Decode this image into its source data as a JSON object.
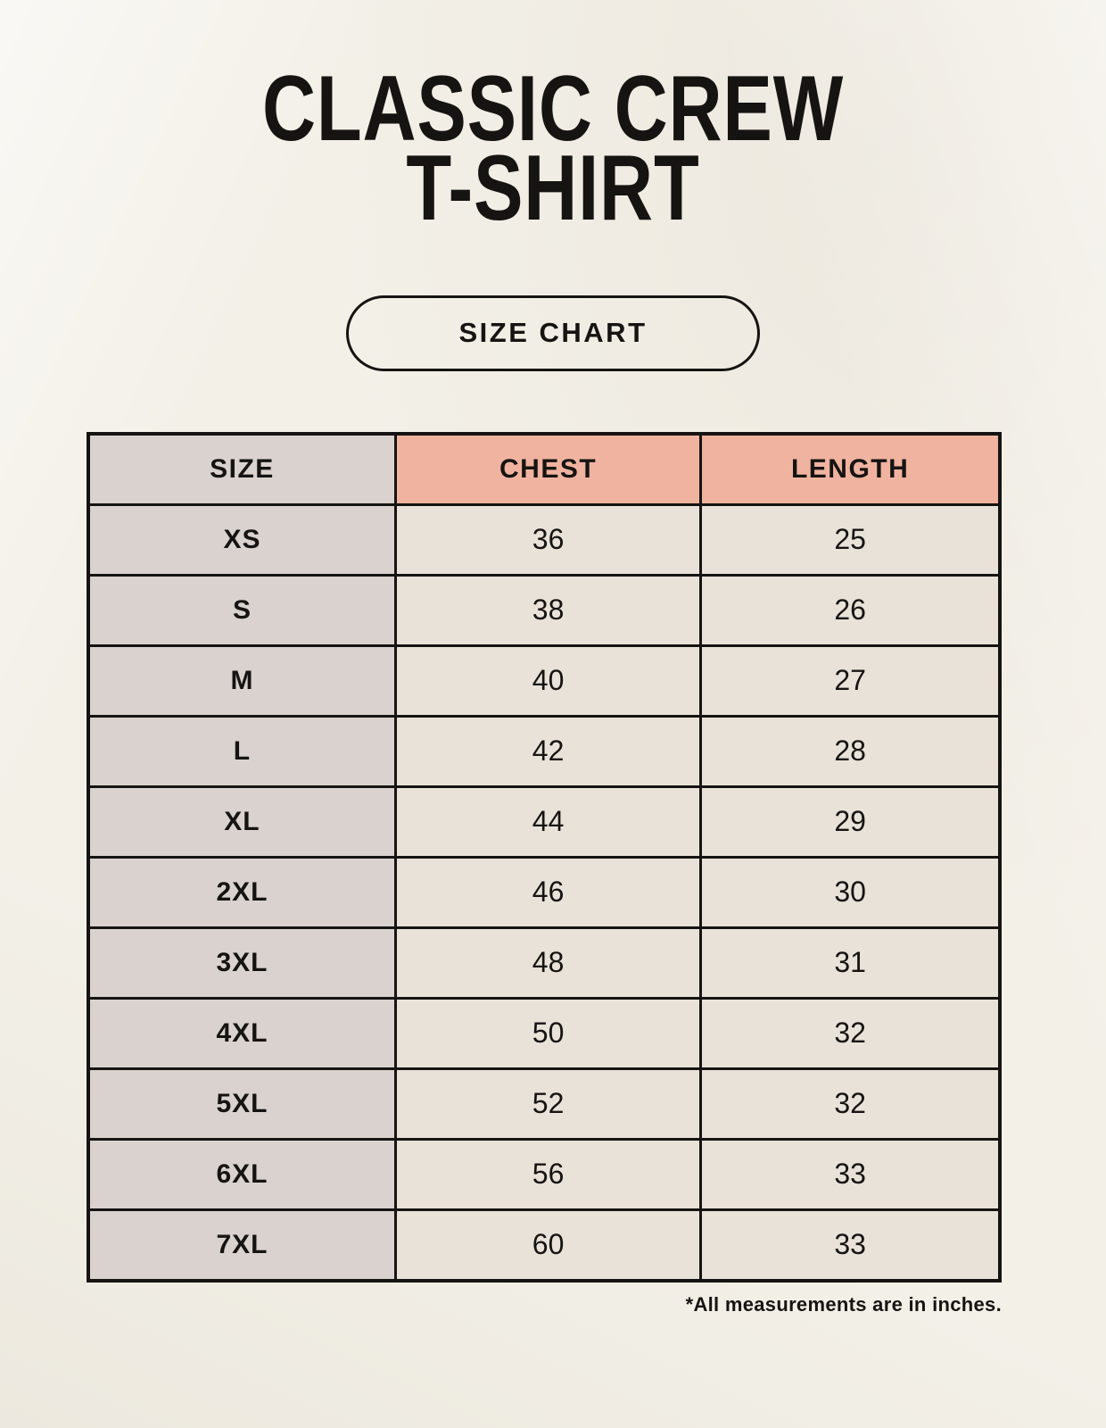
{
  "header": {
    "title_line1": "CLASSIC CREW",
    "title_line2": "T-SHIRT",
    "button_label": "SIZE CHART"
  },
  "chart_data": {
    "type": "table",
    "title": "Classic Crew T-Shirt Size Chart",
    "columns": [
      "SIZE",
      "CHEST",
      "LENGTH"
    ],
    "rows": [
      [
        "XS",
        "36",
        "25"
      ],
      [
        "S",
        "38",
        "26"
      ],
      [
        "M",
        "40",
        "27"
      ],
      [
        "L",
        "42",
        "28"
      ],
      [
        "XL",
        "44",
        "29"
      ],
      [
        "2XL",
        "46",
        "30"
      ],
      [
        "3XL",
        "48",
        "31"
      ],
      [
        "4XL",
        "50",
        "32"
      ],
      [
        "5XL",
        "52",
        "32"
      ],
      [
        "6XL",
        "56",
        "33"
      ],
      [
        "7XL",
        "60",
        "33"
      ]
    ],
    "units_note": "*All measurements are in inches."
  },
  "colors": {
    "background": "#f3f0e8",
    "size_column_bg": "#d9d2ce",
    "accent_header_bg": "#f0b3a0",
    "data_cell_bg": "#e9e2d9",
    "border": "#161412",
    "text": "#161412"
  }
}
